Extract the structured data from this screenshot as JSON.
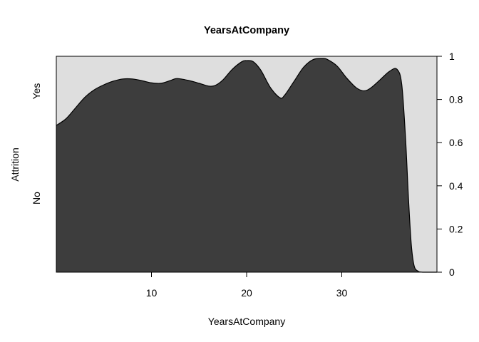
{
  "chart_data": {
    "type": "area",
    "subtype": "conditional-density",
    "title": "YearsAtCompany",
    "xlabel": "YearsAtCompany",
    "ylabel": "Attrition",
    "xlim": [
      0,
      40
    ],
    "ylim": [
      0,
      1
    ],
    "x_ticks": [
      10,
      20,
      30
    ],
    "y_ticks_right": [
      0,
      0.2,
      0.4,
      0.6,
      0.8,
      1
    ],
    "categories_left": [
      "No",
      "Yes"
    ],
    "series": [
      {
        "name": "No",
        "color": "#3d3d3d",
        "x": [
          0,
          1,
          2,
          3,
          4,
          5,
          6,
          7,
          8,
          9,
          10,
          11,
          12,
          12.7,
          14,
          15,
          16,
          16.7,
          17.5,
          18.5,
          19.5,
          20,
          20.7,
          21.5,
          22.5,
          23.5,
          24,
          25,
          26,
          27,
          28,
          28.5,
          29.5,
          30.5,
          31.5,
          32.3,
          33,
          34,
          35,
          35.8,
          36.3,
          36.7,
          37,
          37.3,
          37.6,
          38,
          38.5,
          40
        ],
        "y": [
          0.68,
          0.71,
          0.76,
          0.81,
          0.845,
          0.868,
          0.885,
          0.895,
          0.895,
          0.887,
          0.877,
          0.875,
          0.888,
          0.897,
          0.887,
          0.875,
          0.862,
          0.865,
          0.89,
          0.94,
          0.975,
          0.98,
          0.975,
          0.935,
          0.855,
          0.808,
          0.82,
          0.885,
          0.95,
          0.985,
          0.99,
          0.985,
          0.955,
          0.9,
          0.855,
          0.84,
          0.852,
          0.89,
          0.93,
          0.94,
          0.87,
          0.62,
          0.35,
          0.13,
          0.03,
          0.005,
          0.0,
          0.0
        ]
      },
      {
        "name": "Yes",
        "color": "#dedede"
      }
    ]
  }
}
